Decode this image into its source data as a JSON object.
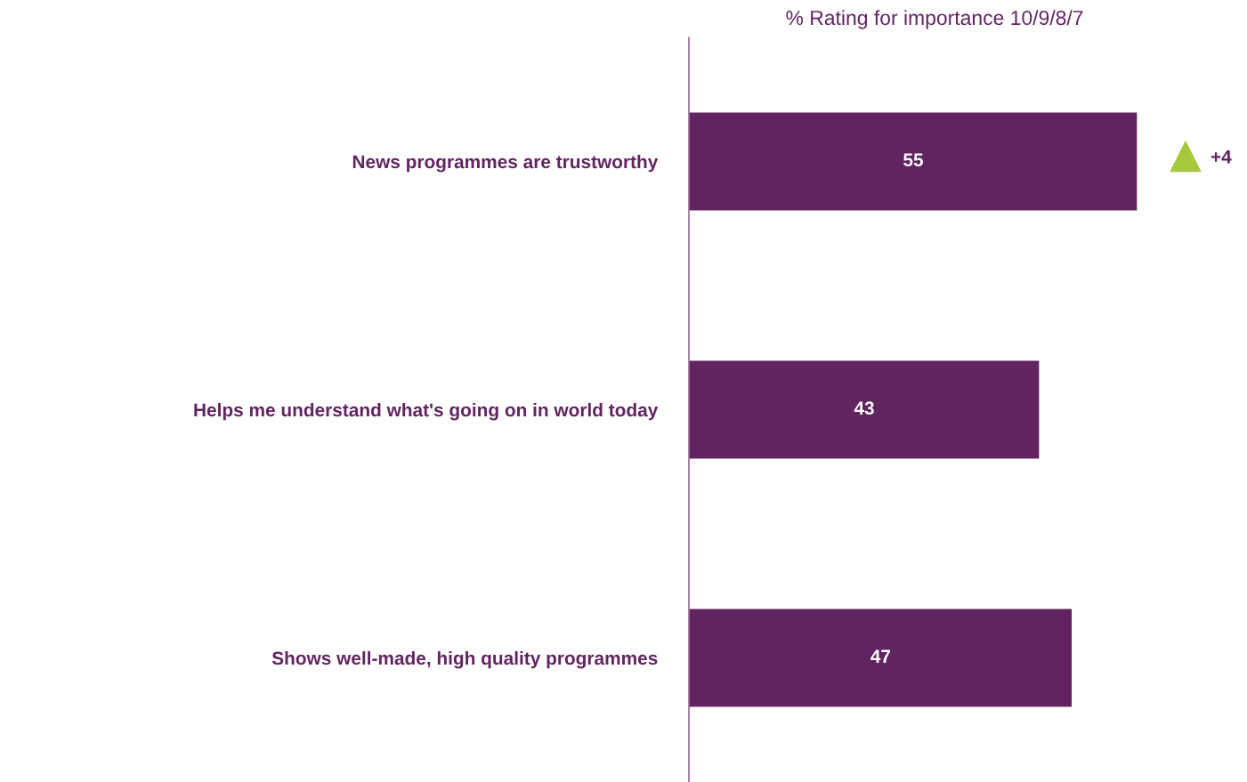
{
  "chart_data": {
    "type": "bar",
    "orientation": "horizontal",
    "title": "% Rating for importance 10/9/8/7",
    "categories": [
      "News programmes are trustworthy",
      "Helps me understand what's going on in world today",
      "Shows well-made, high quality programmes"
    ],
    "values": [
      55,
      43,
      47
    ],
    "color": "#622461",
    "data_labels": true,
    "grid": false,
    "legend": false,
    "annotations": [
      "+4"
    ]
  }
}
